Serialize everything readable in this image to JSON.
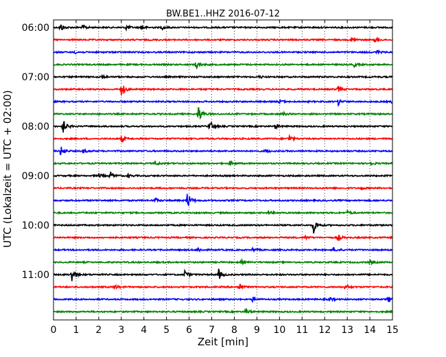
{
  "chart_data": {
    "type": "line",
    "title": "BW.BE1..HHZ 2016-07-12",
    "xlabel": "Zeit  [min]",
    "ylabel": "UTC (Lokalzeit = UTC + 02:00)",
    "xlim": [
      0,
      15
    ],
    "x_ticks": [
      0,
      1,
      2,
      3,
      4,
      5,
      6,
      7,
      8,
      9,
      10,
      11,
      12,
      13,
      14,
      15
    ],
    "grid": "vertical-dotted",
    "trace_interval_min": 15,
    "row_labels": [
      "06:00",
      "07:00",
      "08:00",
      "09:00",
      "10:00",
      "11:00"
    ],
    "row_colors": [
      "#000000",
      "#ff0000",
      "#0000ff",
      "#008000"
    ],
    "series": [
      {
        "start": "06:00",
        "events": [
          [
            0.3,
            0.4
          ],
          [
            1.3,
            0.25
          ],
          [
            3.2,
            0.3
          ],
          [
            3.9,
            0.25
          ],
          [
            4.8,
            0.15
          ]
        ]
      },
      {
        "start": "06:15",
        "events": [
          [
            13.2,
            0.25
          ],
          [
            14.2,
            0.2
          ]
        ]
      },
      {
        "start": "06:30",
        "events": [
          [
            0.9,
            0.15
          ],
          [
            14.3,
            0.15
          ]
        ]
      },
      {
        "start": "06:45",
        "events": [
          [
            6.3,
            0.5
          ],
          [
            13.3,
            0.2
          ]
        ]
      },
      {
        "start": "07:00",
        "events": [
          [
            2.1,
            0.3
          ],
          [
            9.1,
            0.15
          ]
        ]
      },
      {
        "start": "07:15",
        "events": [
          [
            3.0,
            0.7
          ],
          [
            12.6,
            0.25
          ]
        ]
      },
      {
        "start": "07:30",
        "events": [
          [
            10.0,
            0.2
          ],
          [
            12.6,
            0.3
          ],
          [
            15.0,
            0.25
          ]
        ]
      },
      {
        "start": "07:45",
        "events": [
          [
            6.4,
            0.9
          ],
          [
            10.1,
            0.2
          ]
        ]
      },
      {
        "start": "08:00",
        "events": [
          [
            0.4,
            0.8
          ],
          [
            6.9,
            0.6
          ],
          [
            9.8,
            0.25
          ]
        ]
      },
      {
        "start": "08:15",
        "events": [
          [
            3.0,
            0.3
          ],
          [
            10.4,
            0.4
          ]
        ]
      },
      {
        "start": "08:30",
        "events": [
          [
            0.3,
            0.5
          ],
          [
            1.3,
            0.2
          ],
          [
            9.4,
            0.2
          ]
        ]
      },
      {
        "start": "08:45",
        "events": [
          [
            4.5,
            0.2
          ],
          [
            7.8,
            0.2
          ],
          [
            14.0,
            0.2
          ]
        ]
      },
      {
        "start": "09:00",
        "events": [
          [
            2.0,
            0.2
          ],
          [
            2.5,
            0.4
          ],
          [
            3.3,
            0.15
          ]
        ]
      },
      {
        "start": "09:15",
        "events": [
          [
            13.6,
            0.15
          ]
        ]
      },
      {
        "start": "09:30",
        "events": [
          [
            5.9,
            0.9
          ],
          [
            4.5,
            0.2
          ]
        ]
      },
      {
        "start": "09:45",
        "events": [
          [
            9.5,
            0.2
          ],
          [
            13.0,
            0.2
          ]
        ]
      },
      {
        "start": "10:00",
        "events": [
          [
            11.5,
            0.8
          ]
        ]
      },
      {
        "start": "10:15",
        "events": [
          [
            11.1,
            0.2
          ],
          [
            12.6,
            0.25
          ]
        ]
      },
      {
        "start": "10:30",
        "events": [
          [
            6.4,
            0.2
          ],
          [
            8.8,
            0.2
          ],
          [
            12.4,
            0.2
          ]
        ]
      },
      {
        "start": "10:45",
        "events": [
          [
            8.3,
            0.2
          ],
          [
            14.0,
            0.2
          ]
        ]
      },
      {
        "start": "11:00",
        "events": [
          [
            0.8,
            0.8
          ],
          [
            5.8,
            0.4
          ],
          [
            7.3,
            0.5
          ]
        ]
      },
      {
        "start": "11:15",
        "events": [
          [
            2.7,
            0.2
          ],
          [
            8.2,
            0.4
          ],
          [
            12.9,
            0.3
          ]
        ]
      },
      {
        "start": "11:30",
        "events": [
          [
            8.8,
            0.2
          ],
          [
            12.2,
            0.2
          ],
          [
            14.8,
            0.3
          ]
        ]
      },
      {
        "start": "11:45",
        "events": [
          [
            8.5,
            0.3
          ]
        ]
      }
    ]
  }
}
